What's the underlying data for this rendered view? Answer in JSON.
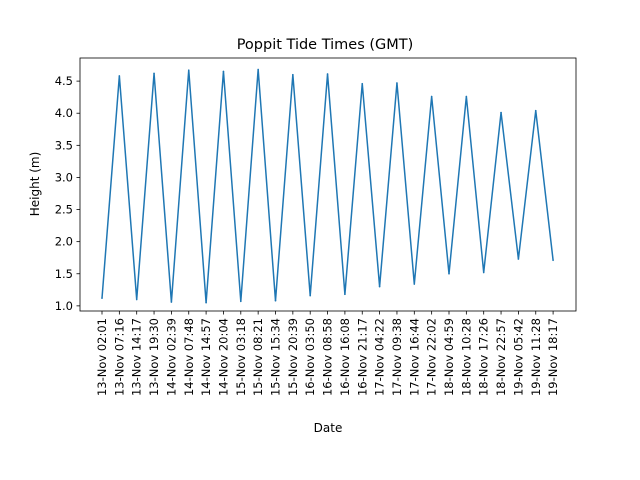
{
  "chart_data": {
    "type": "line",
    "title": "Poppit Tide Times (GMT)",
    "xlabel": "Date",
    "ylabel": "Height (m)",
    "categories": [
      "13-Nov 02:01",
      "13-Nov 07:16",
      "13-Nov 14:17",
      "13-Nov 19:30",
      "14-Nov 02:39",
      "14-Nov 07:48",
      "14-Nov 14:57",
      "14-Nov 20:04",
      "15-Nov 03:18",
      "15-Nov 08:21",
      "15-Nov 15:34",
      "15-Nov 20:39",
      "16-Nov 03:50",
      "16-Nov 08:58",
      "16-Nov 16:08",
      "16-Nov 21:17",
      "17-Nov 04:22",
      "17-Nov 09:38",
      "17-Nov 16:44",
      "17-Nov 22:02",
      "18-Nov 04:59",
      "18-Nov 10:28",
      "18-Nov 17:26",
      "18-Nov 22:57",
      "19-Nov 05:42",
      "19-Nov 11:28",
      "19-Nov 18:17"
    ],
    "values": [
      1.12,
      4.58,
      1.1,
      4.62,
      1.06,
      4.67,
      1.05,
      4.65,
      1.07,
      4.68,
      1.08,
      4.6,
      1.16,
      4.61,
      1.18,
      4.46,
      1.3,
      4.47,
      1.34,
      4.26,
      1.5,
      4.26,
      1.52,
      4.01,
      1.73,
      4.04,
      1.71
    ],
    "yticks": [
      "1.0",
      "1.5",
      "2.0",
      "2.5",
      "3.0",
      "3.5",
      "4.0",
      "4.5"
    ],
    "ylim": [
      0.92,
      4.86
    ],
    "grid": false,
    "line_color": "#1f77b4"
  }
}
